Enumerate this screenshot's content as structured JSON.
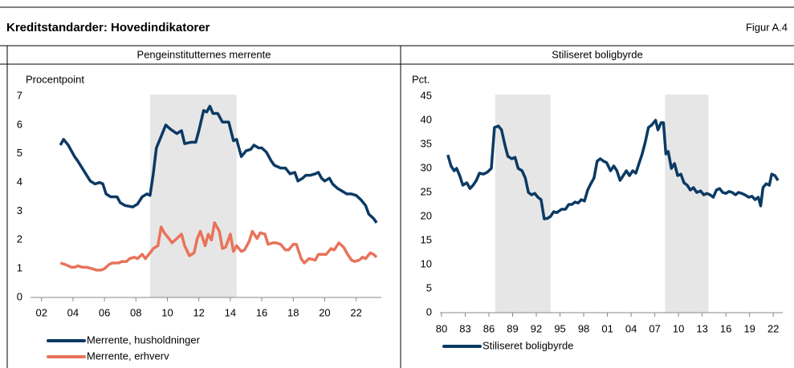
{
  "header": {
    "title": "Kreditstandarder: Hovedindikatorer",
    "figure": "Figur A.4"
  },
  "chart_data": [
    {
      "type": "line",
      "title": "Pengeinstitutternes merrente",
      "ylabel": "Procentpoint",
      "xlim": [
        2001.3,
        2023.6
      ],
      "ylim": [
        0,
        7
      ],
      "xticks": [
        {
          "value": 2002,
          "label": "02"
        },
        {
          "value": 2004,
          "label": "04"
        },
        {
          "value": 2006,
          "label": "06"
        },
        {
          "value": 2008,
          "label": "08"
        },
        {
          "value": 2010,
          "label": "10"
        },
        {
          "value": 2012,
          "label": "12"
        },
        {
          "value": 2014,
          "label": "14"
        },
        {
          "value": 2016,
          "label": "16"
        },
        {
          "value": 2018,
          "label": "18"
        },
        {
          "value": 2020,
          "label": "20"
        },
        {
          "value": 2022,
          "label": "22"
        }
      ],
      "yticks": [
        0,
        1,
        2,
        3,
        4,
        5,
        6,
        7
      ],
      "shaded": [
        [
          2008.9,
          2014.4
        ]
      ],
      "legend": "bottom",
      "series": [
        {
          "name": "Merrente, husholdninger",
          "color": "#0b3a64",
          "x": [
            2003.2,
            2003.4,
            2003.7,
            2004.1,
            2004.3,
            2004.7,
            2005.1,
            2005.4,
            2005.7,
            2005.9,
            2006.1,
            2006.4,
            2006.8,
            2007.0,
            2007.3,
            2007.8,
            2008.1,
            2008.4,
            2008.7,
            2008.9,
            2009.1,
            2009.3,
            2009.6,
            2009.9,
            2010.2,
            2010.6,
            2010.9,
            2011.1,
            2011.5,
            2011.8,
            2012.0,
            2012.3,
            2012.5,
            2012.7,
            2012.9,
            2013.2,
            2013.5,
            2013.9,
            2014.2,
            2014.4,
            2014.7,
            2015.0,
            2015.3,
            2015.5,
            2015.8,
            2016.0,
            2016.3,
            2016.6,
            2016.8,
            2017.2,
            2017.5,
            2017.8,
            2018.1,
            2018.3,
            2018.6,
            2018.8,
            2019.1,
            2019.4,
            2019.6,
            2019.8,
            2020.0,
            2020.3,
            2020.5,
            2020.8,
            2021.1,
            2021.4,
            2021.7,
            2022.0,
            2022.3,
            2022.6,
            2022.8,
            2023.1,
            2023.3
          ],
          "values": [
            5.3,
            5.5,
            5.3,
            4.9,
            4.75,
            4.4,
            4.05,
            3.95,
            4.0,
            3.95,
            3.6,
            3.5,
            3.5,
            3.3,
            3.2,
            3.15,
            3.25,
            3.5,
            3.6,
            3.55,
            4.3,
            5.2,
            5.6,
            6.0,
            5.85,
            5.7,
            5.8,
            5.35,
            5.4,
            5.4,
            5.8,
            6.5,
            6.45,
            6.65,
            6.4,
            6.4,
            6.1,
            6.1,
            5.45,
            5.5,
            4.9,
            5.1,
            5.15,
            5.3,
            5.2,
            5.2,
            5.05,
            4.75,
            4.6,
            4.5,
            4.5,
            4.3,
            4.35,
            4.05,
            4.15,
            4.25,
            4.25,
            4.3,
            4.35,
            4.15,
            4.05,
            4.15,
            3.95,
            3.8,
            3.7,
            3.6,
            3.6,
            3.55,
            3.4,
            3.2,
            2.9,
            2.75,
            2.6
          ]
        },
        {
          "name": "Merrente, erhverv",
          "color": "#e8735a",
          "x": [
            2003.2,
            2003.5,
            2003.9,
            2004.1,
            2004.3,
            2004.6,
            2004.9,
            2005.2,
            2005.5,
            2005.8,
            2006.0,
            2006.3,
            2006.5,
            2006.9,
            2007.1,
            2007.4,
            2007.6,
            2007.9,
            2008.1,
            2008.4,
            2008.6,
            2008.9,
            2009.1,
            2009.4,
            2009.6,
            2009.8,
            2010.1,
            2010.3,
            2010.6,
            2010.9,
            2011.1,
            2011.4,
            2011.7,
            2011.9,
            2012.1,
            2012.4,
            2012.6,
            2012.8,
            2013.0,
            2013.3,
            2013.5,
            2013.7,
            2014.0,
            2014.2,
            2014.4,
            2014.7,
            2014.9,
            2015.2,
            2015.4,
            2015.7,
            2015.9,
            2016.2,
            2016.4,
            2016.7,
            2016.9,
            2017.2,
            2017.5,
            2017.7,
            2018.0,
            2018.2,
            2018.5,
            2018.7,
            2019.0,
            2019.4,
            2019.6,
            2019.9,
            2020.1,
            2020.4,
            2020.6,
            2020.9,
            2021.2,
            2021.4,
            2021.7,
            2021.9,
            2022.2,
            2022.4,
            2022.6,
            2022.9,
            2023.1,
            2023.3
          ],
          "values": [
            1.2,
            1.15,
            1.05,
            1.05,
            1.1,
            1.05,
            1.05,
            1.0,
            0.95,
            0.95,
            1.0,
            1.15,
            1.2,
            1.2,
            1.25,
            1.25,
            1.35,
            1.4,
            1.35,
            1.5,
            1.35,
            1.55,
            1.7,
            1.8,
            2.45,
            2.25,
            2.05,
            1.9,
            2.05,
            2.2,
            1.8,
            1.45,
            1.55,
            2.05,
            2.3,
            1.8,
            2.2,
            2.0,
            2.6,
            2.3,
            1.7,
            1.75,
            2.2,
            1.6,
            1.8,
            1.6,
            1.65,
            1.95,
            2.3,
            2.05,
            2.25,
            2.2,
            1.85,
            1.9,
            1.9,
            1.85,
            1.65,
            1.65,
            1.85,
            1.85,
            1.35,
            1.2,
            1.35,
            1.3,
            1.5,
            1.5,
            1.5,
            1.7,
            1.65,
            1.9,
            1.75,
            1.55,
            1.3,
            1.25,
            1.3,
            1.4,
            1.35,
            1.55,
            1.5,
            1.4
          ]
        }
      ]
    },
    {
      "type": "line",
      "title": "Stiliseret boligbyrde",
      "ylabel": "Pct.",
      "xlim": [
        1979.8,
        2023.2
      ],
      "ylim": [
        0,
        45
      ],
      "xticks": [
        {
          "value": 1980,
          "label": "80"
        },
        {
          "value": 1983,
          "label": "83"
        },
        {
          "value": 1986,
          "label": "86"
        },
        {
          "value": 1989,
          "label": "89"
        },
        {
          "value": 1992,
          "label": "92"
        },
        {
          "value": 1995,
          "label": "95"
        },
        {
          "value": 1998,
          "label": "98"
        },
        {
          "value": 2001,
          "label": "01"
        },
        {
          "value": 2004,
          "label": "04"
        },
        {
          "value": 2007,
          "label": "07"
        },
        {
          "value": 2010,
          "label": "10"
        },
        {
          "value": 2013,
          "label": "13"
        },
        {
          "value": 2016,
          "label": "16"
        },
        {
          "value": 2019,
          "label": "19"
        },
        {
          "value": 2022,
          "label": "22"
        }
      ],
      "yticks": [
        0,
        5,
        10,
        15,
        20,
        25,
        30,
        35,
        40,
        45
      ],
      "shaded": [
        [
          1986.8,
          1993.8
        ],
        [
          2008.3,
          2013.8
        ]
      ],
      "legend": "bottom",
      "series": [
        {
          "name": "Stiliseret boligbyrde",
          "color": "#0b3a64",
          "x": [
            1980.8,
            1981.2,
            1981.6,
            1981.9,
            1982.3,
            1982.7,
            1983.2,
            1983.6,
            1984.0,
            1984.4,
            1984.8,
            1985.3,
            1985.8,
            1986.3,
            1986.7,
            1987.2,
            1987.6,
            1988.0,
            1988.4,
            1988.9,
            1989.3,
            1989.7,
            1990.2,
            1990.6,
            1991.0,
            1991.4,
            1991.8,
            1992.2,
            1992.6,
            1993.0,
            1993.4,
            1993.8,
            1994.2,
            1994.6,
            1995.2,
            1995.7,
            1996.1,
            1996.5,
            1996.9,
            1997.3,
            1997.7,
            1998.1,
            1998.5,
            1998.9,
            1999.3,
            1999.7,
            2000.1,
            2000.5,
            2000.9,
            2001.4,
            2001.8,
            2002.2,
            2002.6,
            2003.0,
            2003.4,
            2003.8,
            2004.2,
            2004.6,
            2005.0,
            2005.4,
            2005.8,
            2006.2,
            2006.6,
            2007.1,
            2007.4,
            2007.8,
            2008.1,
            2008.4,
            2008.7,
            2009.1,
            2009.5,
            2009.9,
            2010.3,
            2010.7,
            2011.1,
            2011.5,
            2011.9,
            2012.3,
            2012.8,
            2013.2,
            2013.6,
            2014.0,
            2014.4,
            2014.8,
            2015.2,
            2015.6,
            2016.0,
            2016.4,
            2016.8,
            2017.2,
            2017.6,
            2018.0,
            2018.4,
            2018.9,
            2019.3,
            2019.7,
            2020.1,
            2020.4,
            2020.7,
            2021.1,
            2021.5,
            2021.8,
            2022.2,
            2022.6
          ],
          "values": [
            32.8,
            30.5,
            29.5,
            30.0,
            28.5,
            26.5,
            27.0,
            25.8,
            26.5,
            27.5,
            29.0,
            28.8,
            29.2,
            30.0,
            38.5,
            38.8,
            38.0,
            35.0,
            32.5,
            32.0,
            32.3,
            30.0,
            29.5,
            28.0,
            25.0,
            24.5,
            24.8,
            24.0,
            23.5,
            19.5,
            19.6,
            20.0,
            21.0,
            20.8,
            21.5,
            21.5,
            22.5,
            22.5,
            23.0,
            22.8,
            23.5,
            23.2,
            25.5,
            26.8,
            28.0,
            31.5,
            32.0,
            31.5,
            31.2,
            29.5,
            30.5,
            29.5,
            27.5,
            28.5,
            29.5,
            28.5,
            29.5,
            29.0,
            31.0,
            33.0,
            35.5,
            38.5,
            39.0,
            40.0,
            38.0,
            39.5,
            39.5,
            33.0,
            33.5,
            30.0,
            31.0,
            28.5,
            28.8,
            27.0,
            26.5,
            25.5,
            26.0,
            25.0,
            25.3,
            24.5,
            24.8,
            24.5,
            24.0,
            25.5,
            25.8,
            25.0,
            24.8,
            25.2,
            25.0,
            24.5,
            25.0,
            24.8,
            24.5,
            24.0,
            24.2,
            23.5,
            24.0,
            22.2,
            26.0,
            26.8,
            26.5,
            28.8,
            28.5,
            27.5
          ]
        }
      ]
    }
  ]
}
